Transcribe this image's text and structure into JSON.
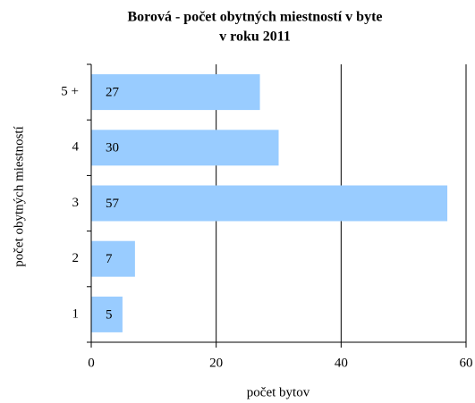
{
  "chart_data": {
    "type": "barh",
    "title": [
      "Borová - počet obytných miestností v byte",
      "v roku 2011"
    ],
    "xlabel": "počet bytov",
    "ylabel": "počet obytných miestností",
    "categories": [
      "1",
      "2",
      "3",
      "4",
      "5 +"
    ],
    "values": [
      5,
      7,
      57,
      30,
      27
    ],
    "color": "#99ccff",
    "xlim": [
      0,
      60
    ],
    "xticks": [
      0,
      20,
      40,
      60
    ],
    "grid": true
  }
}
